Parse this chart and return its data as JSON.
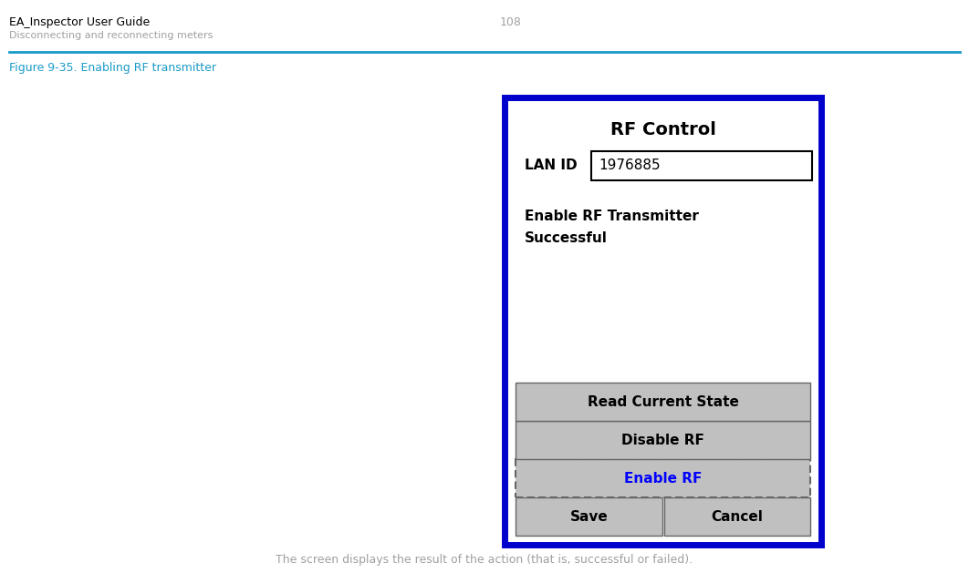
{
  "header_title": "EA_Inspector User Guide",
  "header_page": "108",
  "header_subtitle": "Disconnecting and reconnecting meters",
  "figure_caption": "Figure 9-35. Enabling RF transmitter",
  "dialog_title": "RF Control",
  "lan_id_label": "LAN ID",
  "lan_id_value": "1976885",
  "status_text_line1": "Enable RF Transmitter",
  "status_text_line2": "Successful",
  "btn_read": "Read Current State",
  "btn_disable": "Disable RF",
  "btn_enable": "Enable RF",
  "btn_save": "Save",
  "btn_cancel": "Cancel",
  "footer_text": "The screen displays the result of the action (that is, successful or failed).",
  "header_title_color": "#000000",
  "header_page_color": "#a0a0a0",
  "header_subtitle_color": "#a0a0a0",
  "figure_caption_color": "#1a9bc7",
  "separator_color": "#1a9bc7",
  "dialog_border_color": "#0000cc",
  "dialog_bg": "#ffffff",
  "btn_bg": "#c0c0c0",
  "btn_text_color": "#000000",
  "btn_enable_text_color": "#0000ff",
  "footer_text_color": "#a0a0a0",
  "fig_width": 10.62,
  "fig_height": 6.4,
  "dpi": 100
}
